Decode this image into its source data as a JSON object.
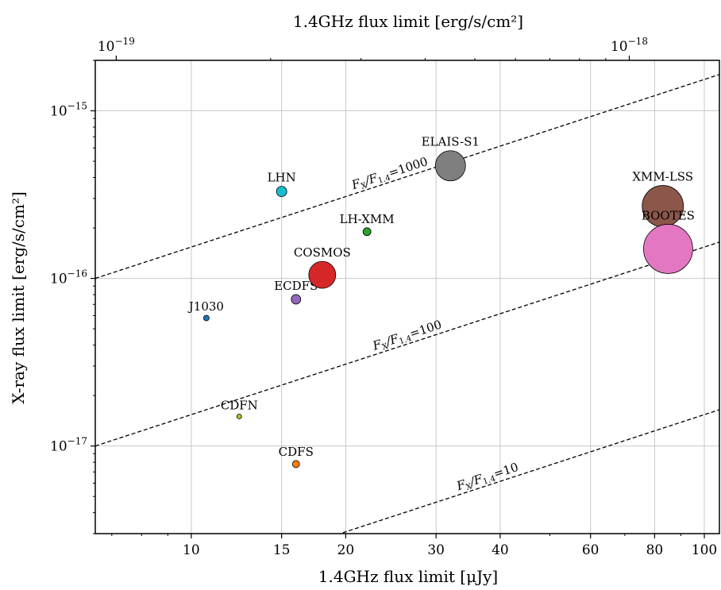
{
  "chart_data": {
    "type": "scatter",
    "xlabel": "1.4GHz flux limit [μJy]",
    "ylabel": "X-ray flux limit [erg/s/cm²]",
    "x2label": "1.4GHz flux limit [erg/s/cm²]",
    "xscale": "log",
    "yscale": "log",
    "xlim": [
      6.5,
      107
    ],
    "ylim": [
      3e-18,
      2e-15
    ],
    "grid": true,
    "xticks": [
      10,
      15,
      20,
      30,
      40,
      60,
      80,
      100
    ],
    "yticks": [
      {
        "value": 1e-17,
        "mantissa": "10",
        "exponent": "−17"
      },
      {
        "value": 1e-16,
        "mantissa": "10",
        "exponent": "−16"
      },
      {
        "value": 1e-15,
        "mantissa": "10",
        "exponent": "−15"
      }
    ],
    "x2ticks": [
      {
        "position_ujy": 7.14,
        "mantissa": "10",
        "exponent": "−19"
      },
      {
        "position_ujy": 71.4,
        "mantissa": "10",
        "exponent": "−18"
      }
    ],
    "points": [
      {
        "name": "J1030",
        "x": 10.7,
        "y": 5.8e-17,
        "size": 7,
        "color": "#1f77b4"
      },
      {
        "name": "LHN",
        "x": 15.0,
        "y": 3.3e-16,
        "size": 13,
        "color": "#17becf"
      },
      {
        "name": "ECDFS",
        "x": 16.0,
        "y": 7.5e-17,
        "size": 12,
        "color": "#9467bd"
      },
      {
        "name": "COSMOS",
        "x": 18.0,
        "y": 1.05e-16,
        "size": 34,
        "color": "#d62728"
      },
      {
        "name": "LH-XMM",
        "x": 22.0,
        "y": 1.9e-16,
        "size": 10,
        "color": "#2ca02c"
      },
      {
        "name": "ELAIS-S1",
        "x": 32.0,
        "y": 4.7e-16,
        "size": 38,
        "color": "#7f7f7f"
      },
      {
        "name": "XMM-LSS",
        "x": 83.0,
        "y": 2.7e-16,
        "size": 52,
        "color": "#8c564b"
      },
      {
        "name": "BOOTES",
        "x": 85.0,
        "y": 1.5e-16,
        "size": 62,
        "color": "#e377c2"
      },
      {
        "name": "CDFN",
        "x": 12.4,
        "y": 1.5e-17,
        "size": 6,
        "color": "#bcbd22"
      },
      {
        "name": "CDFS",
        "x": 16.0,
        "y": 7.8e-18,
        "size": 9,
        "color": "#ff7f0e"
      }
    ],
    "ratio_lines": [
      {
        "ratio": 1000,
        "y_at_x_min": 1e-16,
        "label_main": "F",
        "label_sub1": "X",
        "label_mid": "/F",
        "label_sub2": "1.4",
        "label_eq": "=1000",
        "label_x": 24.5
      },
      {
        "ratio": 100,
        "y_at_x_min": 1e-17,
        "label_main": "F",
        "label_sub1": "X",
        "label_mid": "/F",
        "label_sub2": "1.4",
        "label_eq": "=100",
        "label_x": 26.5
      },
      {
        "ratio": 10,
        "y_at_x_min": 1e-18,
        "label_main": "F",
        "label_sub1": "X",
        "label_mid": "/F",
        "label_sub2": "1.4",
        "label_eq": "=10",
        "label_x": 38.0
      }
    ]
  }
}
